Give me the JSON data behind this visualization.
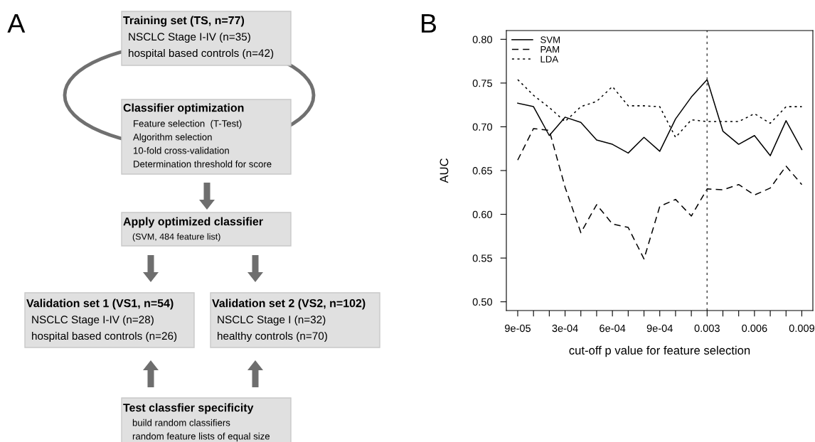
{
  "chart_data": [
    {
      "type": "other",
      "title": "A",
      "annotations": [
        "Training set (TS, n=77)",
        "NSCLC Stage I-IV (n=35)",
        "hospital based controls (n=42)",
        "Classifier optimization",
        "Feature selection  (T-Test)",
        "Algorithm selection",
        "10-fold cross-validation",
        "Determination threshold for score",
        "Apply optimized classifier",
        "(SVM, 484 feature list)",
        "Validation set 1 (VS1, n=54)",
        "NSCLC Stage I-IV (n=28)",
        "hospital based controls (n=26)",
        "Validation set 2 (VS2, n=102)",
        "NSCLC Stage I (n=32)",
        "healthy controls (n=70)",
        "Test classfier specificity",
        "build random classifiers",
        "random feature lists of equal size"
      ]
    },
    {
      "type": "line",
      "title": "B",
      "xlabel": "cut-off p value for feature selection",
      "ylabel": "AUC",
      "categories": [
        "9e-05",
        null,
        null,
        "3e-04",
        null,
        null,
        "6e-04",
        null,
        null,
        "9e-04",
        null,
        null,
        "0.003",
        null,
        null,
        "0.006",
        null,
        null,
        "0.009"
      ],
      "series": [
        {
          "name": "SVM",
          "color": "#000000",
          "line_style": "solid",
          "values": [
            0.727,
            0.723,
            0.69,
            0.711,
            0.705,
            0.685,
            0.68,
            0.67,
            0.688,
            0.672,
            0.709,
            0.734,
            0.754,
            0.695,
            0.68,
            0.69,
            0.667,
            0.707,
            0.674
          ]
        },
        {
          "name": "PAM",
          "color": "#000000",
          "line_style": "dashed",
          "values": [
            0.662,
            0.698,
            0.696,
            0.631,
            0.579,
            0.611,
            0.589,
            0.585,
            0.549,
            0.609,
            0.617,
            0.598,
            0.629,
            0.628,
            0.634,
            0.622,
            0.63,
            0.655,
            0.634
          ]
        },
        {
          "name": "LDA",
          "color": "#000000",
          "line_style": "dotted",
          "values": [
            0.754,
            0.736,
            0.722,
            0.706,
            0.723,
            0.729,
            0.746,
            0.724,
            0.724,
            0.723,
            0.688,
            0.708,
            0.706,
            0.706,
            0.706,
            0.715,
            0.704,
            0.723,
            0.723
          ]
        }
      ],
      "ylim": [
        0.49,
        0.81
      ],
      "yticks": [
        {
          "value": 0.5,
          "label": "0.50"
        },
        0.55,
        {
          "value": 0.6,
          "label": "0.60"
        },
        0.65,
        {
          "value": 0.7,
          "label": "0.70"
        },
        0.75,
        {
          "value": 0.8,
          "label": "0.80"
        }
      ],
      "ref_lines": [
        {
          "axis": "x",
          "value": "0.003",
          "color": "#555555",
          "line_style": "dotted"
        }
      ],
      "legend": "top left",
      "grid": false
    }
  ]
}
